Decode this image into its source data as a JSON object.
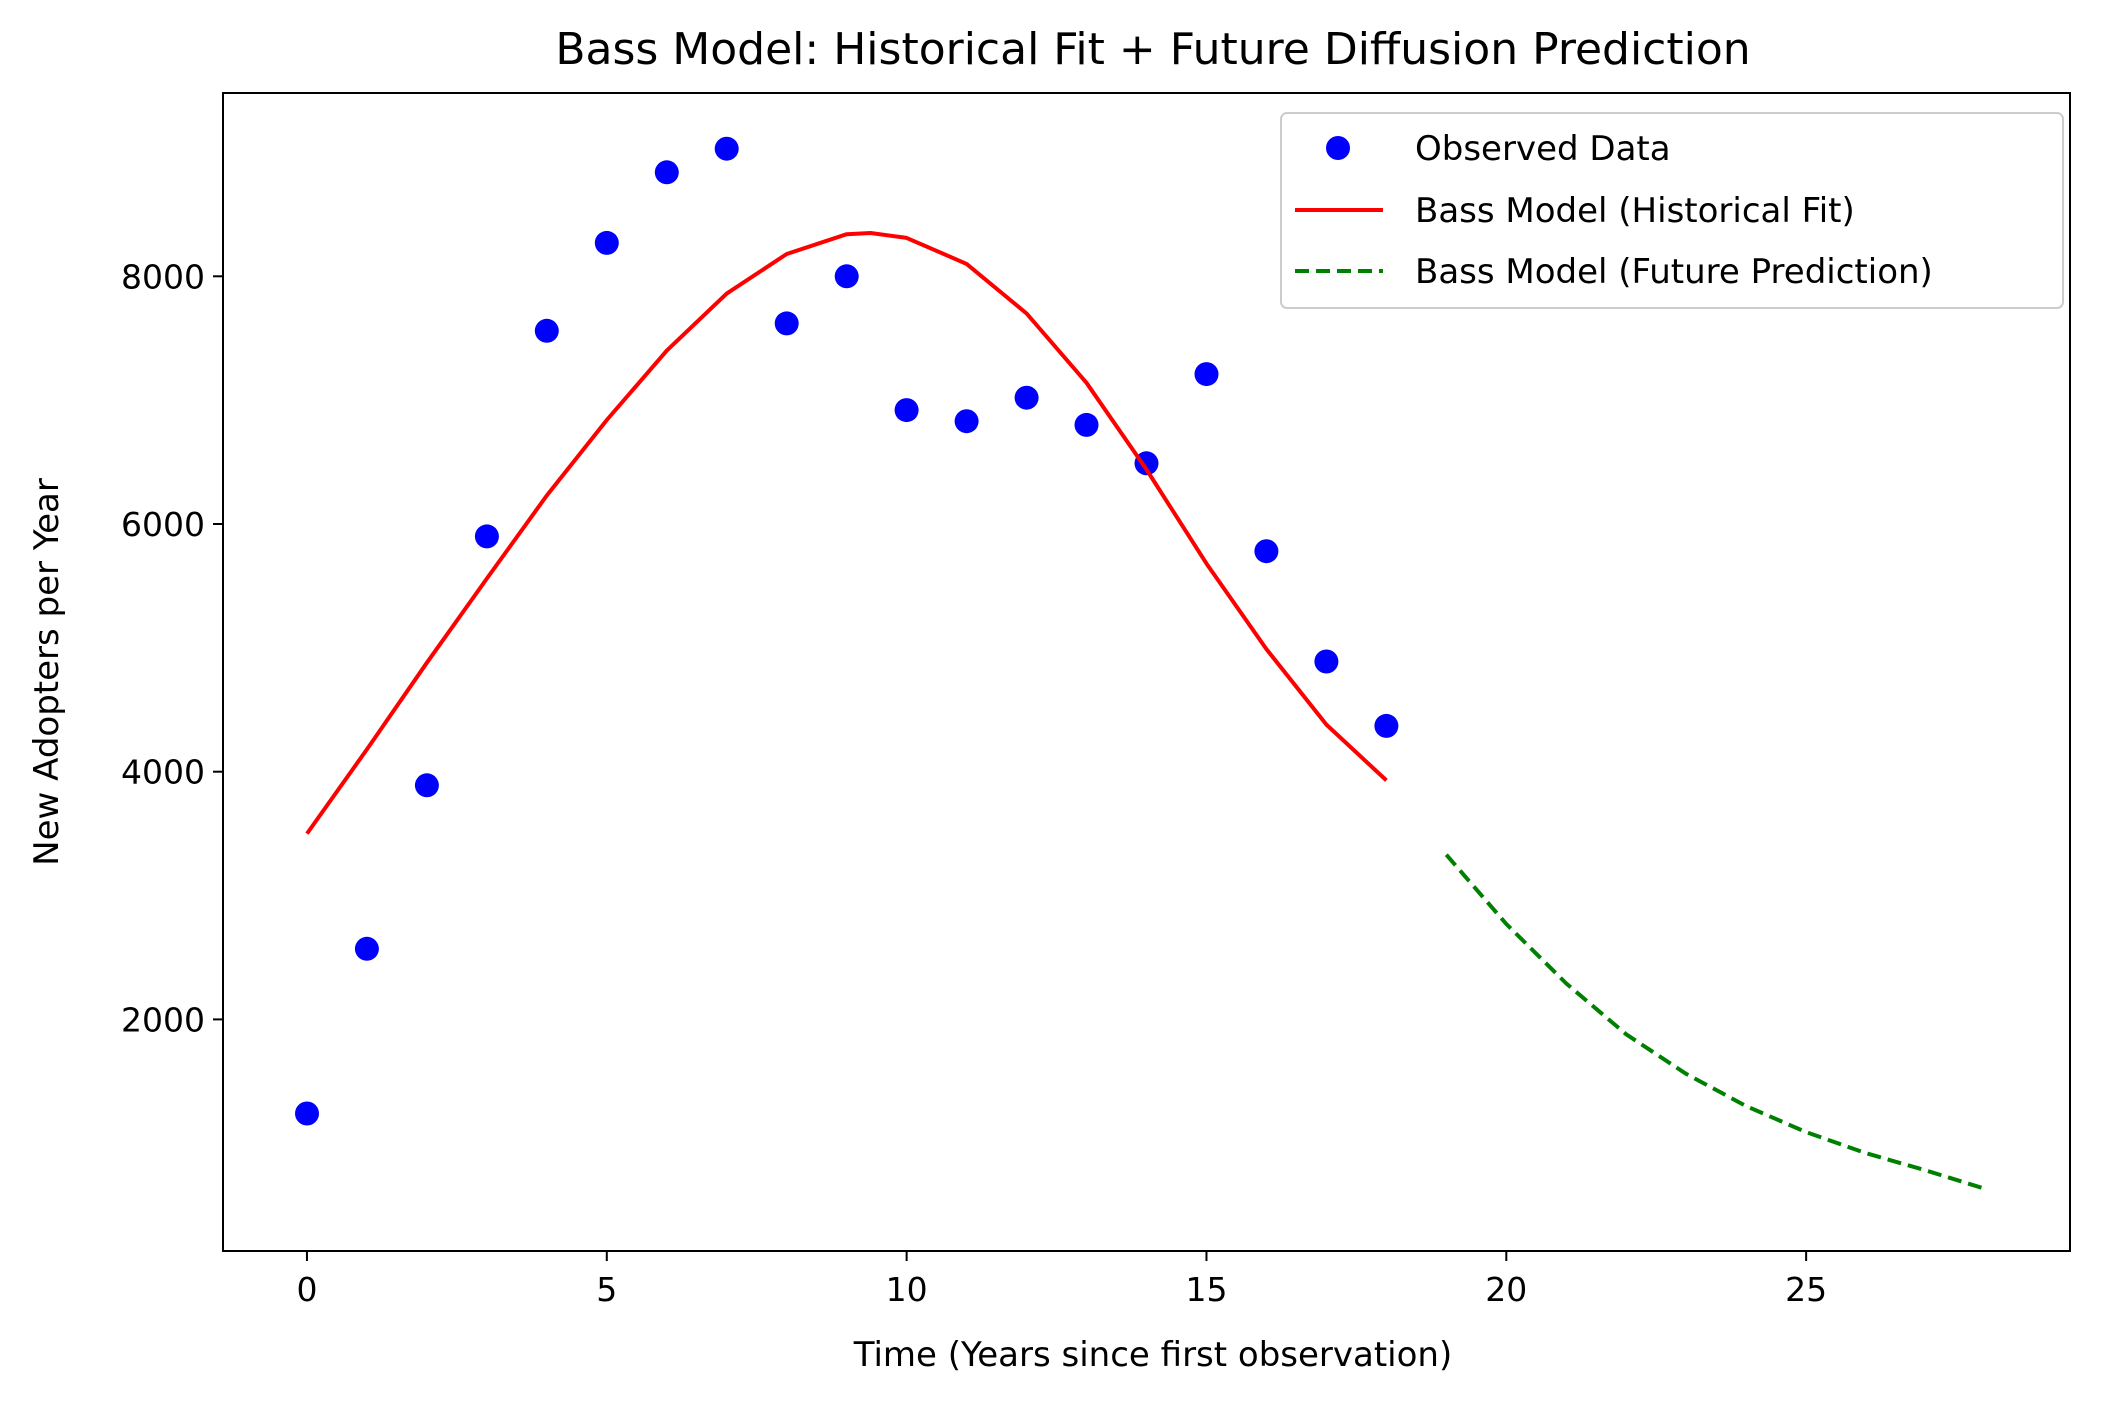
{
  "chart_data": {
    "type": "line",
    "title": "Bass Model: Historical Fit + Future Diffusion Prediction",
    "xlabel": "Time (Years since first observation)",
    "ylabel": "New Adopters per Year",
    "xlim": [
      -1.4,
      29.4
    ],
    "ylim": [
      130,
      9480
    ],
    "x_ticks": [
      0,
      5,
      10,
      15,
      20,
      25
    ],
    "y_ticks": [
      2000,
      4000,
      6000,
      8000
    ],
    "grid": false,
    "legend_position": "upper right",
    "series": [
      {
        "name": "Observed Data",
        "kind": "scatter",
        "color": "#0000ff",
        "x": [
          0,
          1,
          2,
          3,
          4,
          5,
          6,
          7,
          8,
          9,
          10,
          11,
          12,
          13,
          14,
          15,
          16,
          17,
          18
        ],
        "y": [
          1240,
          2570,
          3890,
          5900,
          7560,
          8270,
          8840,
          9030,
          7620,
          8000,
          6920,
          6830,
          7020,
          6800,
          6490,
          7210,
          5780,
          4890,
          4370
        ]
      },
      {
        "name": "Bass Model (Historical Fit)",
        "kind": "line",
        "style": "solid",
        "color": "#ff0000",
        "x": [
          0,
          1,
          2,
          3,
          4,
          5,
          6,
          7,
          8,
          9,
          9.4,
          10,
          11,
          12,
          13,
          14,
          15,
          16,
          17,
          18
        ],
        "y": [
          3500,
          4180,
          4880,
          5560,
          6230,
          6840,
          7400,
          7860,
          8180,
          8340,
          8350,
          8310,
          8100,
          7700,
          7140,
          6440,
          5680,
          4990,
          4380,
          3930
        ]
      },
      {
        "name": "Bass Model (Future Prediction)",
        "kind": "line",
        "style": "dashed",
        "color": "#008000",
        "x": [
          19,
          20,
          21,
          22,
          23,
          24,
          25,
          26,
          27,
          28
        ],
        "y": [
          3330,
          2770,
          2290,
          1880,
          1560,
          1300,
          1090,
          920,
          780,
          630
        ]
      }
    ]
  }
}
